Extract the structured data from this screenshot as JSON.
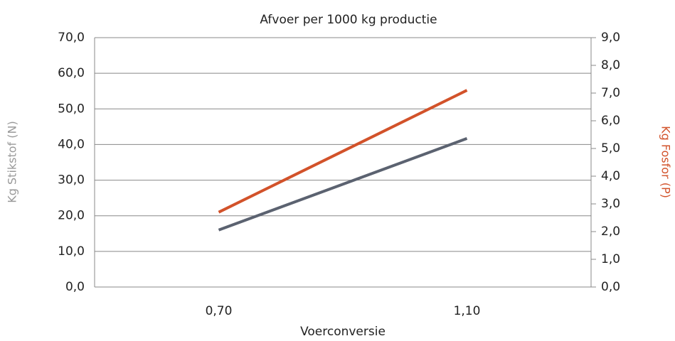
{
  "chart_data": {
    "type": "line",
    "title": "Afvoer per 1000 kg productie",
    "xlabel": "Voerconversie",
    "ylabel": "Kg Stikstof (N)",
    "y2label": "Kg Fosfor (P)",
    "categories": [
      "0,70",
      "1,10"
    ],
    "series": [
      {
        "color": "#5b6270",
        "values": [
          16.0,
          41.7
        ]
      },
      {
        "color": "#d2522a",
        "values": [
          2.7,
          7.1
        ],
        "axis": "y2"
      }
    ],
    "ylim": [
      0,
      70
    ],
    "yticks": [
      {
        "value": 0,
        "label": "0,0"
      },
      {
        "value": 10,
        "label": "10,0"
      },
      {
        "value": 20,
        "label": "20,0"
      },
      {
        "value": 30,
        "label": "30,0"
      },
      {
        "value": 40,
        "label": "40,0"
      },
      {
        "value": 50,
        "label": "50,0"
      },
      {
        "value": 60,
        "label": "60,0"
      },
      {
        "value": 70,
        "label": "70,0"
      }
    ],
    "y2lim": [
      0,
      9
    ],
    "y2ticks": [
      {
        "value": 0,
        "label": "0,0"
      },
      {
        "value": 1,
        "label": "1,0"
      },
      {
        "value": 2,
        "label": "2,0"
      },
      {
        "value": 3,
        "label": "3,0"
      },
      {
        "value": 4,
        "label": "4,0"
      },
      {
        "value": 5,
        "label": "5,0"
      },
      {
        "value": 6,
        "label": "6,0"
      },
      {
        "value": 7,
        "label": "7,0"
      },
      {
        "value": 8,
        "label": "8,0"
      },
      {
        "value": 9,
        "label": "9,0"
      }
    ],
    "grid": true
  }
}
